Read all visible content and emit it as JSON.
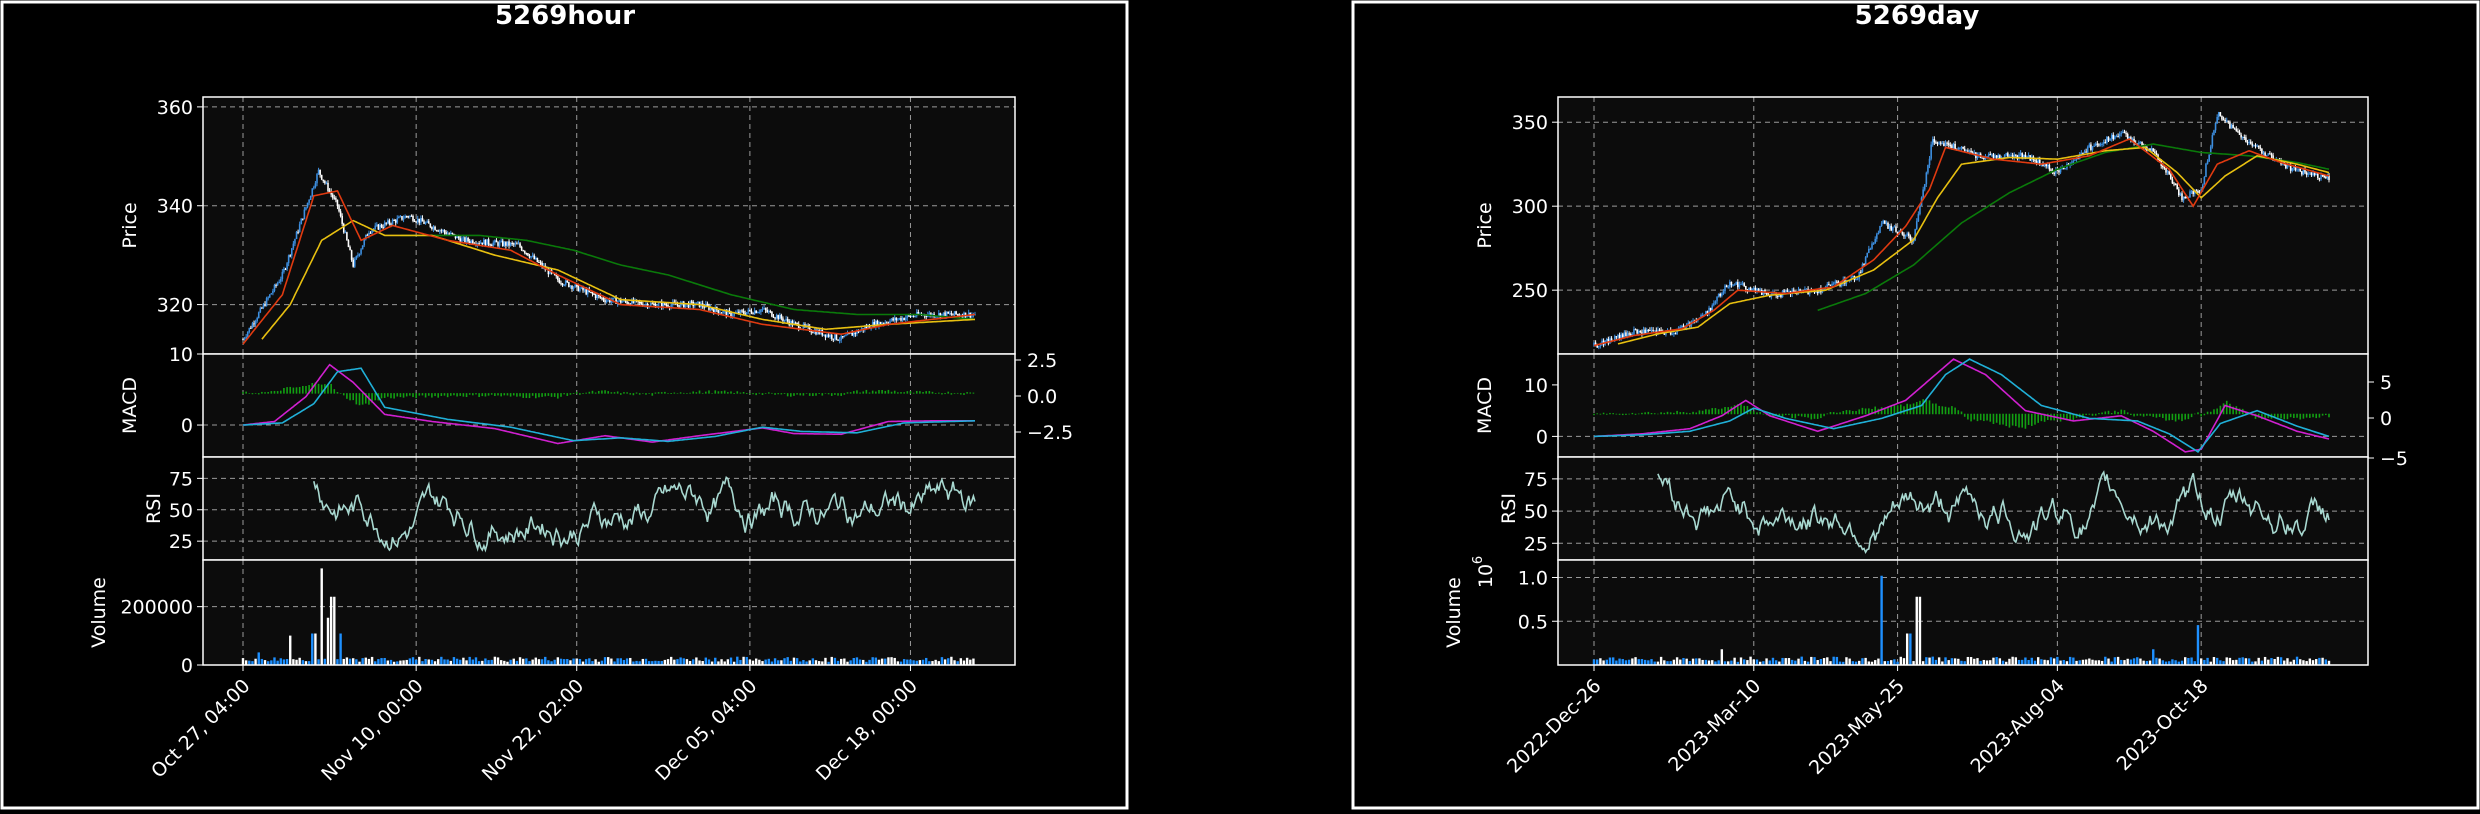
{
  "chart_data": [
    {
      "type": "candlestick",
      "title": "5269hour",
      "price": {
        "ylabel": "Price",
        "ylim": [
          310,
          362
        ],
        "yticks": [
          320,
          340,
          360
        ],
        "series": {
          "ohlc": {
            "start": 313,
            "points": [
              [
                0,
                313
              ],
              [
                25,
                326
              ],
              [
                48,
                347
              ],
              [
                60,
                340
              ],
              [
                70,
                328
              ],
              [
                80,
                335
              ],
              [
                105,
                338
              ],
              [
                140,
                333
              ],
              [
                175,
                332
              ],
              [
                200,
                325
              ],
              [
                230,
                321
              ],
              [
                260,
                320
              ],
              [
                290,
                320
              ],
              [
                310,
                318
              ],
              [
                330,
                319
              ],
              [
                350,
                316
              ],
              [
                380,
                313
              ],
              [
                400,
                316
              ],
              [
                430,
                318
              ],
              [
                450,
                318
              ],
              [
                465,
                318
              ]
            ]
          },
          "ma_red": {
            "points": [
              [
                0,
                312
              ],
              [
                25,
                322
              ],
              [
                45,
                342
              ],
              [
                60,
                343
              ],
              [
                75,
                333
              ],
              [
                95,
                336
              ],
              [
                130,
                333
              ],
              [
                170,
                331
              ],
              [
                200,
                326
              ],
              [
                240,
                320
              ],
              [
                290,
                319
              ],
              [
                330,
                316
              ],
              [
                380,
                314
              ],
              [
                410,
                316
              ],
              [
                465,
                318
              ]
            ]
          },
          "ma_yellow": {
            "points": [
              [
                12,
                313
              ],
              [
                30,
                320
              ],
              [
                50,
                333
              ],
              [
                70,
                337
              ],
              [
                90,
                334
              ],
              [
                120,
                334
              ],
              [
                160,
                330
              ],
              [
                200,
                327
              ],
              [
                240,
                321
              ],
              [
                290,
                320
              ],
              [
                330,
                317
              ],
              [
                370,
                315
              ],
              [
                410,
                316
              ],
              [
                465,
                317
              ]
            ]
          },
          "ma_green": {
            "points": [
              [
                100,
                334
              ],
              [
                150,
                334
              ],
              [
                180,
                333
              ],
              [
                210,
                331
              ],
              [
                240,
                328
              ],
              [
                270,
                326
              ],
              [
                310,
                322
              ],
              [
                350,
                319
              ],
              [
                390,
                318
              ],
              [
                430,
                318
              ],
              [
                465,
                317
              ]
            ]
          }
        }
      },
      "macd": {
        "ylabel": "MACD",
        "ylim": [
          -4.5,
          10
        ],
        "left_ticks": [
          0,
          10
        ],
        "right_ticks": [
          "2.5",
          "0.0",
          "−2.5"
        ],
        "points_magenta": [
          [
            0,
            0
          ],
          [
            20,
            0.5
          ],
          [
            40,
            4
          ],
          [
            55,
            8.5
          ],
          [
            70,
            6
          ],
          [
            90,
            1.5
          ],
          [
            120,
            0.5
          ],
          [
            160,
            -0.5
          ],
          [
            200,
            -2.6
          ],
          [
            230,
            -1.5
          ],
          [
            260,
            -2.4
          ],
          [
            290,
            -1.5
          ],
          [
            330,
            -0.4
          ],
          [
            350,
            -1.2
          ],
          [
            380,
            -1.3
          ],
          [
            410,
            0.5
          ],
          [
            440,
            0.6
          ],
          [
            465,
            0.6
          ]
        ],
        "points_cyan": [
          [
            0,
            0
          ],
          [
            25,
            0.3
          ],
          [
            45,
            3
          ],
          [
            60,
            7.5
          ],
          [
            75,
            8
          ],
          [
            90,
            2.5
          ],
          [
            130,
            0.8
          ],
          [
            170,
            -0.3
          ],
          [
            210,
            -2.2
          ],
          [
            240,
            -1.8
          ],
          [
            270,
            -2.3
          ],
          [
            300,
            -1.6
          ],
          [
            330,
            -0.3
          ],
          [
            355,
            -0.9
          ],
          [
            390,
            -1.1
          ],
          [
            420,
            0.3
          ],
          [
            465,
            0.6
          ]
        ]
      },
      "rsi": {
        "ylabel": "RSI",
        "ylim": [
          10,
          92
        ],
        "yticks": [
          25,
          50,
          75
        ]
      },
      "volume": {
        "ylabel": "Volume",
        "ylim": [
          0,
          360000
        ],
        "yticks_labels": [
          "0",
          "200000"
        ],
        "yticks": [
          0,
          200000
        ]
      },
      "x_ticks": [
        "Oct 27, 04:00",
        "Nov 10, 00:00",
        "Nov 22, 02:00",
        "Dec 05, 04:00",
        "Dec 18, 00:00"
      ]
    },
    {
      "type": "candlestick",
      "title": "5269day",
      "price": {
        "ylabel": "Price",
        "ylim": [
          212,
          365
        ],
        "yticks": [
          250,
          300,
          350
        ],
        "series": {
          "ohlc": {
            "start": 217,
            "points": [
              [
                0,
                217
              ],
              [
                25,
                225
              ],
              [
                50,
                225
              ],
              [
                70,
                236
              ],
              [
                85,
                255
              ],
              [
                110,
                247
              ],
              [
                140,
                250
              ],
              [
                165,
                258
              ],
              [
                180,
                290
              ],
              [
                200,
                280
              ],
              [
                212,
                340
              ],
              [
                240,
                330
              ],
              [
                270,
                330
              ],
              [
                290,
                320
              ],
              [
                310,
                335
              ],
              [
                330,
                343
              ],
              [
                350,
                333
              ],
              [
                368,
                305
              ],
              [
                380,
                310
              ],
              [
                390,
                355
              ],
              [
                410,
                338
              ],
              [
                430,
                325
              ],
              [
                450,
                318
              ],
              [
                460,
                316
              ]
            ]
          },
          "ma_red": {
            "points": [
              [
                0,
                217
              ],
              [
                25,
                223
              ],
              [
                55,
                227
              ],
              [
                75,
                238
              ],
              [
                90,
                250
              ],
              [
                120,
                248
              ],
              [
                150,
                252
              ],
              [
                175,
                268
              ],
              [
                195,
                288
              ],
              [
                210,
                310
              ],
              [
                220,
                335
              ],
              [
                250,
                328
              ],
              [
                280,
                325
              ],
              [
                310,
                330
              ],
              [
                335,
                340
              ],
              [
                360,
                322
              ],
              [
                375,
                300
              ],
              [
                390,
                325
              ],
              [
                410,
                333
              ],
              [
                430,
                326
              ],
              [
                460,
                318
              ]
            ]
          },
          "ma_yellow": {
            "points": [
              [
                15,
                218
              ],
              [
                40,
                224
              ],
              [
                65,
                228
              ],
              [
                85,
                242
              ],
              [
                110,
                247
              ],
              [
                145,
                250
              ],
              [
                175,
                262
              ],
              [
                200,
                280
              ],
              [
                215,
                305
              ],
              [
                230,
                325
              ],
              [
                260,
                329
              ],
              [
                290,
                328
              ],
              [
                320,
                333
              ],
              [
                345,
                335
              ],
              [
                365,
                320
              ],
              [
                380,
                305
              ],
              [
                395,
                318
              ],
              [
                415,
                330
              ],
              [
                440,
                325
              ],
              [
                460,
                320
              ]
            ]
          },
          "ma_green": {
            "points": [
              [
                140,
                238
              ],
              [
                170,
                248
              ],
              [
                200,
                265
              ],
              [
                230,
                290
              ],
              [
                260,
                308
              ],
              [
                290,
                322
              ],
              [
                320,
                332
              ],
              [
                350,
                337
              ],
              [
                380,
                332
              ],
              [
                410,
                330
              ],
              [
                440,
                326
              ],
              [
                460,
                322
              ]
            ]
          }
        }
      },
      "macd": {
        "ylabel": "MACD",
        "ylim": [
          -4,
          16
        ],
        "left_ticks": [
          0,
          10
        ],
        "right_ticks": [
          "5",
          "0",
          "−5"
        ],
        "points_magenta": [
          [
            0,
            0
          ],
          [
            30,
            0.5
          ],
          [
            60,
            1.5
          ],
          [
            80,
            4
          ],
          [
            95,
            7
          ],
          [
            110,
            4
          ],
          [
            140,
            1
          ],
          [
            170,
            4
          ],
          [
            195,
            7
          ],
          [
            210,
            11
          ],
          [
            225,
            15
          ],
          [
            245,
            12
          ],
          [
            270,
            5
          ],
          [
            300,
            3
          ],
          [
            330,
            4
          ],
          [
            350,
            1
          ],
          [
            370,
            -3
          ],
          [
            380,
            -2.5
          ],
          [
            395,
            6
          ],
          [
            415,
            4
          ],
          [
            440,
            1
          ],
          [
            460,
            -0.5
          ]
        ],
        "points_cyan": [
          [
            0,
            0
          ],
          [
            30,
            0.3
          ],
          [
            60,
            1
          ],
          [
            85,
            3
          ],
          [
            100,
            5.5
          ],
          [
            120,
            3.5
          ],
          [
            150,
            1.5
          ],
          [
            180,
            3.5
          ],
          [
            205,
            6
          ],
          [
            220,
            12
          ],
          [
            235,
            15
          ],
          [
            255,
            12
          ],
          [
            280,
            6
          ],
          [
            310,
            3.5
          ],
          [
            340,
            3
          ],
          [
            360,
            0.5
          ],
          [
            378,
            -3
          ],
          [
            392,
            2.5
          ],
          [
            415,
            5
          ],
          [
            440,
            2
          ],
          [
            460,
            0
          ]
        ]
      },
      "rsi": {
        "ylabel": "RSI",
        "ylim": [
          12,
          92
        ],
        "yticks": [
          25,
          50,
          75
        ]
      },
      "volume": {
        "ylabel": "Volume",
        "exponent_label": "10",
        "exponent": "6",
        "ylim": [
          0,
          1.2
        ],
        "yticks_labels": [
          "0.5",
          "1.0"
        ],
        "yticks": [
          0.5,
          1.0
        ]
      },
      "x_ticks": [
        "2022-Dec-26",
        "2023-Mar-10",
        "2023-May-25",
        "2023-Aug-04",
        "2023-Oct-18"
      ]
    }
  ]
}
